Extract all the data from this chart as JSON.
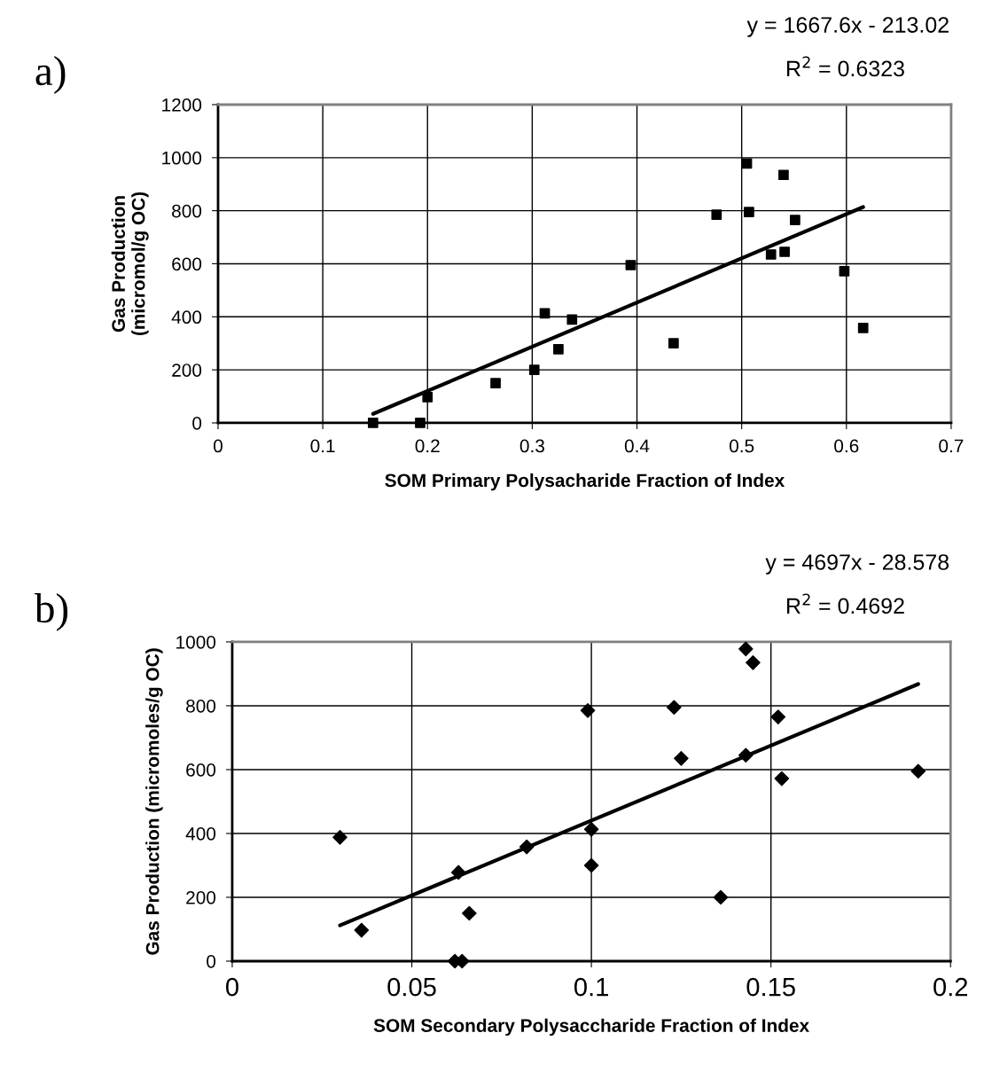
{
  "chart_data": [
    {
      "type": "scatter",
      "xlabel": "SOM Primary Polysacharide Fraction of Index",
      "ylabel": "Gas Production\n(micromol/g OC)",
      "annotations": [
        "a)",
        "y = 1667.6x - 213.02",
        "R$^{2}$ = 0.6323"
      ],
      "xlim": [
        0,
        0.7
      ],
      "xticks": [
        0,
        0.1,
        0.2,
        0.3,
        0.4,
        0.5,
        0.6,
        0.7
      ],
      "ylim": [
        0,
        1200
      ],
      "yticks": [
        0,
        200,
        400,
        600,
        800,
        1000,
        1200
      ],
      "grid": true,
      "legend": false,
      "series": [
        {
          "marker": "square",
          "color": "#000000",
          "x": [
            0.148,
            0.193,
            0.2,
            0.265,
            0.302,
            0.312,
            0.325,
            0.338,
            0.394,
            0.435,
            0.476,
            0.505,
            0.507,
            0.528,
            0.54,
            0.541,
            0.551,
            0.598,
            0.616
          ],
          "values": [
            0,
            0,
            97,
            150,
            200,
            413,
            278,
            390,
            595,
            300,
            785,
            978,
            795,
            635,
            935,
            645,
            765,
            572,
            358
          ]
        },
        {
          "type": "line",
          "marker": "none",
          "color": "#000000",
          "x": [
            0.148,
            0.616
          ],
          "values": [
            34,
            814
          ]
        }
      ]
    },
    {
      "type": "scatter",
      "xlabel": "SOM Secondary Polysaccharide Fraction of Index",
      "ylabel": "Gas Production (micromoles/g OC)",
      "annotations": [
        "b)",
        "y = 4697x - 28.578",
        "R$^{2}$ = 0.4692"
      ],
      "xlim": [
        0,
        0.2
      ],
      "xticks": [
        0,
        0.05,
        0.1,
        0.15,
        0.2
      ],
      "ylim": [
        0,
        1000
      ],
      "yticks": [
        0,
        200,
        400,
        600,
        800,
        1000
      ],
      "grid": true,
      "legend": false,
      "series": [
        {
          "marker": "diamond",
          "color": "#000000",
          "x": [
            0.03,
            0.036,
            0.062,
            0.064,
            0.063,
            0.066,
            0.082,
            0.099,
            0.1,
            0.1,
            0.123,
            0.125,
            0.136,
            0.143,
            0.143,
            0.145,
            0.152,
            0.153,
            0.191
          ],
          "values": [
            388,
            97,
            0,
            0,
            278,
            150,
            358,
            785,
            413,
            300,
            795,
            635,
            200,
            978,
            645,
            935,
            765,
            572,
            595
          ]
        },
        {
          "type": "line",
          "marker": "none",
          "color": "#000000",
          "x": [
            0.03,
            0.191
          ],
          "values": [
            112,
            868
          ]
        }
      ]
    }
  ]
}
